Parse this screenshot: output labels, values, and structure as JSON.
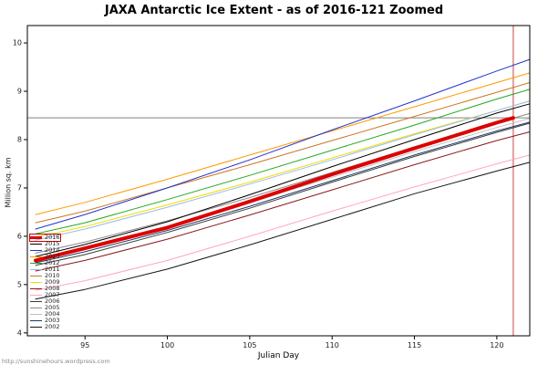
{
  "page": {
    "watermark": "http://sunshinehours.wordpress.com"
  },
  "chart_data": {
    "type": "line",
    "title": "JAXA Antarctic Ice Extent - as of 2016-121 Zoomed",
    "xlabel": "Julian Day",
    "ylabel": "Million sq. km",
    "grid": false,
    "legend_position": "bottom-left",
    "xlim": [
      91.5,
      122.0
    ],
    "ylim": [
      3.94,
      10.36
    ],
    "x_ticks": [
      95,
      100,
      105,
      110,
      115,
      120
    ],
    "y_ticks": [
      4,
      5,
      6,
      7,
      8,
      9,
      10
    ],
    "reference_lines": {
      "horizontal_y": 8.45,
      "horizontal_color": "#808080",
      "vertical_x": 121,
      "vertical_color": "#cc4444"
    },
    "x": [
      92,
      95,
      100,
      105,
      110,
      115,
      120,
      122
    ],
    "series": [
      {
        "name": "2016",
        "color": "#dd0000",
        "width": 4,
        "highlighted": true,
        "x": [
          92,
          95,
          100,
          105,
          110,
          115,
          120,
          121
        ],
        "values": [
          5.5,
          5.75,
          6.18,
          6.72,
          7.28,
          7.82,
          8.35,
          8.45
        ]
      },
      {
        "name": "2015",
        "color": "#000000",
        "width": 1,
        "values": [
          5.58,
          5.83,
          6.3,
          6.86,
          7.44,
          8.0,
          8.55,
          8.74
        ]
      },
      {
        "name": "2014",
        "color": "#2233cc",
        "width": 1,
        "values": [
          6.15,
          6.45,
          7.0,
          7.58,
          8.2,
          8.8,
          9.42,
          9.66
        ]
      },
      {
        "name": "2013",
        "color": "#ff9900",
        "width": 1,
        "values": [
          6.45,
          6.7,
          7.18,
          7.68,
          8.18,
          8.68,
          9.18,
          9.38
        ]
      },
      {
        "name": "2012",
        "color": "#22aa22",
        "width": 1,
        "values": [
          6.05,
          6.28,
          6.76,
          7.26,
          7.78,
          8.3,
          8.84,
          9.04
        ]
      },
      {
        "name": "2011",
        "color": "#99bbee",
        "width": 1,
        "values": [
          5.92,
          6.15,
          6.6,
          7.08,
          7.58,
          8.1,
          8.6,
          8.8
        ]
      },
      {
        "name": "2010",
        "color": "#cc7722",
        "width": 1,
        "values": [
          6.28,
          6.52,
          7.0,
          7.48,
          7.98,
          8.48,
          8.98,
          9.18
        ]
      },
      {
        "name": "2009",
        "color": "#eedd00",
        "width": 1,
        "values": [
          5.98,
          6.2,
          6.65,
          7.12,
          7.62,
          8.12,
          8.6,
          8.8
        ]
      },
      {
        "name": "2008",
        "color": "#8b1a1a",
        "width": 1,
        "values": [
          5.28,
          5.5,
          5.94,
          6.44,
          6.96,
          7.48,
          7.98,
          8.16
        ]
      },
      {
        "name": "2007",
        "color": "#ffa8bb",
        "width": 1,
        "values": [
          4.88,
          5.08,
          5.5,
          6.0,
          6.52,
          7.02,
          7.5,
          7.68
        ]
      },
      {
        "name": "2006",
        "color": "#3c3c3c",
        "width": 1,
        "values": [
          5.4,
          5.62,
          6.08,
          6.58,
          7.12,
          7.65,
          8.15,
          8.34
        ]
      },
      {
        "name": "2005",
        "color": "#8a8a8a",
        "width": 1,
        "values": [
          5.65,
          5.88,
          6.32,
          6.8,
          7.32,
          7.85,
          8.35,
          8.54
        ]
      },
      {
        "name": "2004",
        "color": "#c0c0c0",
        "width": 1,
        "values": [
          5.52,
          5.75,
          6.2,
          6.7,
          7.22,
          7.75,
          8.25,
          8.44
        ]
      },
      {
        "name": "2003",
        "color": "#1a3a6a",
        "width": 1,
        "values": [
          5.45,
          5.68,
          6.12,
          6.62,
          7.15,
          7.68,
          8.18,
          8.36
        ]
      },
      {
        "name": "2002",
        "color": "#161616",
        "width": 1,
        "values": [
          4.7,
          4.9,
          5.32,
          5.82,
          6.35,
          6.88,
          7.35,
          7.53
        ]
      }
    ]
  }
}
